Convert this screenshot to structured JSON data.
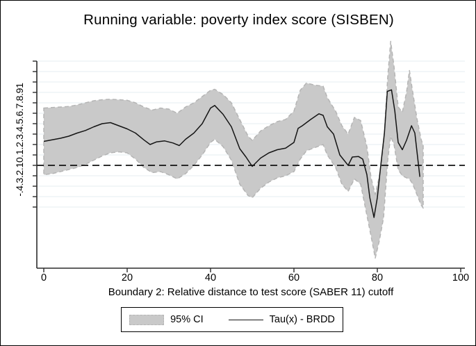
{
  "figure": {
    "title": "Running variable: poverty index score (SISBEN)",
    "xlabel": "Boundary 2: Relative distance to test score (SABER 11) cutoff",
    "ylabel_rotated": "-.4.3.2.10.1.2.3.4.5.6.7.8.91"
  },
  "legend": {
    "ci_label": "95% CI",
    "line_label": "Tau(x) - BRDD"
  },
  "colors": {
    "background": "#ffffff",
    "band_fill": "#c9c9c9",
    "band_edge": "#b5b5b5",
    "tau_line": "#141414",
    "zero_line": "#111111",
    "grid": "#e4edf0",
    "axis": "#2b2b2b"
  },
  "chart_data": {
    "type": "area",
    "title": "Running variable: poverty index score (SISBEN)",
    "xlabel": "Boundary 2: Relative distance to test score (SABER 11) cutoff",
    "ylabel": "",
    "xlim": [
      0,
      100
    ],
    "ylim": [
      -1.0,
      1.05
    ],
    "xticks": [
      0,
      20,
      40,
      60,
      80,
      100
    ],
    "yticks": [
      -0.4,
      -0.3,
      -0.2,
      -0.1,
      0,
      0.1,
      0.2,
      0.3,
      0.4,
      0.5,
      0.6,
      0.7,
      0.8,
      0.9,
      1
    ],
    "ytick_labels": [
      "-.4",
      "-.3",
      "-.2",
      "-.1",
      "0",
      ".1",
      ".2",
      ".3",
      ".4",
      ".5",
      ".6",
      ".7",
      ".8",
      ".9",
      "1"
    ],
    "grid": "horizontal",
    "legend_position": "bottom-center",
    "zero_reference_line": 0,
    "series": [
      {
        "name": "Tau(x) - BRDD",
        "type": "line",
        "x": [
          0,
          2,
          4,
          6,
          8,
          10,
          12,
          14,
          16,
          18,
          20,
          22,
          24,
          25.5,
          27,
          29,
          31,
          32.5,
          34,
          36,
          38,
          40,
          41,
          43,
          45,
          47,
          48.5,
          50,
          52,
          54,
          56,
          58,
          60,
          61,
          62,
          64,
          66,
          67,
          68,
          69.5,
          71,
          73,
          74,
          75.5,
          76.5,
          77.5,
          78.2,
          79.2,
          80,
          80.8,
          81.7,
          82.4,
          83.4,
          84.2,
          85,
          86,
          87,
          88.2,
          89,
          90.2
        ],
        "y": [
          0.23,
          0.245,
          0.26,
          0.28,
          0.31,
          0.335,
          0.37,
          0.4,
          0.41,
          0.38,
          0.35,
          0.31,
          0.245,
          0.2,
          0.225,
          0.235,
          0.215,
          0.19,
          0.25,
          0.31,
          0.4,
          0.55,
          0.575,
          0.49,
          0.37,
          0.16,
          0.08,
          -0.01,
          0.07,
          0.12,
          0.15,
          0.165,
          0.22,
          0.355,
          0.38,
          0.44,
          0.495,
          0.48,
          0.37,
          0.3,
          0.1,
          0.0,
          0.08,
          0.085,
          0.06,
          -0.09,
          -0.31,
          -0.5,
          -0.31,
          -0.01,
          0.31,
          0.71,
          0.725,
          0.52,
          0.22,
          0.15,
          0.24,
          0.38,
          0.31,
          -0.11
        ]
      },
      {
        "name": "95% CI",
        "type": "band",
        "x": [
          0,
          2,
          4,
          6,
          8,
          10,
          12,
          14,
          16,
          18,
          20,
          22,
          24,
          26,
          28,
          30,
          32,
          34,
          36,
          38,
          40,
          41,
          43,
          45,
          47,
          49,
          50,
          52,
          54,
          56,
          58,
          60,
          61.5,
          63,
          65,
          67,
          68,
          70,
          71.5,
          73,
          74.5,
          76,
          77.5,
          78.5,
          79.5,
          80.5,
          81.5,
          82.5,
          83.2,
          84,
          85,
          86,
          87,
          87.7,
          88.5,
          89.5,
          90.5,
          91
        ],
        "upper": [
          0.55,
          0.555,
          0.56,
          0.565,
          0.58,
          0.6,
          0.62,
          0.63,
          0.635,
          0.63,
          0.625,
          0.6,
          0.56,
          0.53,
          0.55,
          0.54,
          0.5,
          0.56,
          0.6,
          0.66,
          0.72,
          0.73,
          0.68,
          0.6,
          0.44,
          0.28,
          0.24,
          0.33,
          0.38,
          0.42,
          0.44,
          0.52,
          0.72,
          0.79,
          0.77,
          0.76,
          0.65,
          0.52,
          0.38,
          0.3,
          0.46,
          0.43,
          0.18,
          -0.12,
          -0.28,
          -0.1,
          0.18,
          0.85,
          1.19,
          0.95,
          0.56,
          0.51,
          0.7,
          0.91,
          0.7,
          0.45,
          0.25,
          0.19
        ],
        "lower": [
          -0.09,
          -0.08,
          -0.06,
          -0.04,
          -0.02,
          0.01,
          0.05,
          0.09,
          0.12,
          0.13,
          0.12,
          0.06,
          -0.02,
          -0.07,
          -0.06,
          -0.09,
          -0.13,
          -0.08,
          0.0,
          0.1,
          0.22,
          0.25,
          0.18,
          0.05,
          -0.18,
          -0.29,
          -0.31,
          -0.22,
          -0.16,
          -0.12,
          -0.1,
          -0.06,
          0.06,
          0.14,
          0.17,
          0.2,
          0.1,
          -0.02,
          -0.18,
          -0.25,
          -0.13,
          -0.18,
          -0.48,
          -0.68,
          -0.89,
          -0.72,
          -0.5,
          0.05,
          0.28,
          0.2,
          -0.04,
          -0.1,
          -0.12,
          -0.13,
          -0.18,
          -0.28,
          -0.38,
          -0.41
        ]
      }
    ]
  }
}
